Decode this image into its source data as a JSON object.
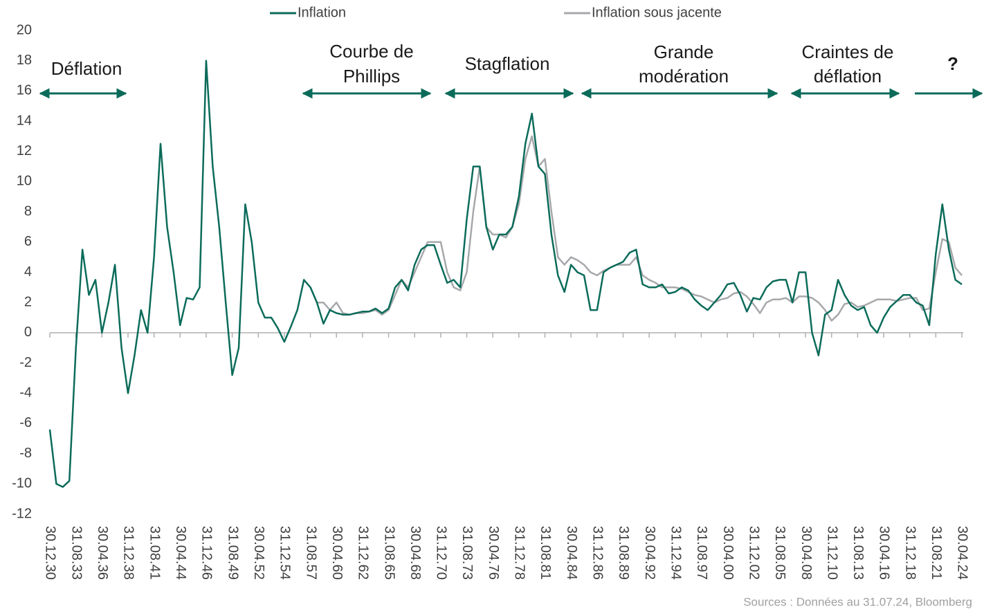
{
  "chart_data": {
    "type": "line",
    "categories": [
      "30.12.30",
      null,
      null,
      null,
      "31.08.33",
      null,
      null,
      null,
      "30.04.36",
      null,
      null,
      null,
      "31.12.38",
      null,
      null,
      null,
      "31.08.41",
      null,
      null,
      null,
      "30.04.44",
      null,
      null,
      null,
      "31.12.46",
      null,
      null,
      null,
      "31.08.49",
      null,
      null,
      null,
      "30.04.52",
      null,
      null,
      null,
      "31.12.54",
      null,
      null,
      null,
      "31.08.57",
      null,
      null,
      null,
      "30.04.60",
      null,
      null,
      null,
      "31.12.62",
      null,
      null,
      null,
      "31.08.65",
      null,
      null,
      null,
      "30.04.68",
      null,
      null,
      null,
      "31.12.70",
      null,
      null,
      null,
      "31.08.73",
      null,
      null,
      null,
      "30.04.76",
      null,
      null,
      null,
      "31.12.78",
      null,
      null,
      null,
      "31.08.81",
      null,
      null,
      null,
      "30.04.84",
      null,
      null,
      null,
      "31.12.86",
      null,
      null,
      null,
      "31.08.89",
      null,
      null,
      null,
      "30.04.92",
      null,
      null,
      null,
      "31.12.94",
      null,
      null,
      null,
      "31.08.97",
      null,
      null,
      null,
      "30.04.00",
      null,
      null,
      null,
      "31.12.02",
      null,
      null,
      null,
      "31.08.05",
      null,
      null,
      null,
      "30.04.08",
      null,
      null,
      null,
      "31.12.10",
      null,
      null,
      null,
      "31.08.13",
      null,
      null,
      null,
      "30.04.16",
      null,
      null,
      null,
      "31.12.18",
      null,
      null,
      null,
      "31.08.21",
      null,
      null,
      null,
      "30.04.24"
    ],
    "series": [
      {
        "name": "Inflation",
        "color": "#0b6b5a",
        "values": [
          -6.4,
          -10,
          -10.2,
          -9.8,
          -1,
          5.5,
          2.5,
          3.5,
          0,
          2,
          4.5,
          -1,
          -4,
          -1.5,
          1.5,
          0,
          5,
          12.5,
          7,
          4,
          0.5,
          2.3,
          2.2,
          3,
          18,
          11,
          7,
          2,
          -2.8,
          -1,
          8.5,
          6,
          2,
          1,
          1,
          0.3,
          -0.6,
          0.4,
          1.5,
          3.5,
          3,
          2,
          0.6,
          1.5,
          1.3,
          1.2,
          1.2,
          1.3,
          1.4,
          1.4,
          1.6,
          1.3,
          1.6,
          3,
          3.5,
          2.8,
          4.5,
          5.5,
          5.8,
          5.8,
          4.5,
          3.3,
          3.5,
          3,
          7.5,
          11,
          11,
          7,
          5.5,
          6.5,
          6.5,
          7,
          9,
          12.5,
          14.5,
          11,
          10.5,
          6.5,
          3.8,
          2.7,
          4.5,
          4,
          3.8,
          1.5,
          1.5,
          4,
          4.3,
          4.5,
          4.7,
          5.3,
          5.5,
          3.2,
          3,
          3,
          3.2,
          2.6,
          2.7,
          3,
          2.8,
          2.2,
          1.8,
          1.5,
          2,
          2.5,
          3.2,
          3.3,
          2.5,
          1.4,
          2.3,
          2.2,
          3,
          3.4,
          3.5,
          3.5,
          2,
          4,
          4,
          0,
          -1.5,
          1.2,
          1.5,
          3.5,
          2.5,
          1.8,
          1.5,
          1.7,
          0.5,
          0,
          1,
          1.7,
          2.1,
          2.5,
          2.5,
          2,
          1.8,
          0.5,
          5.2,
          8.5,
          5.5,
          3.5,
          3.2
        ]
      },
      {
        "name": "Inflation sous jacente",
        "color": "#a6a8ab",
        "values": [
          null,
          null,
          null,
          null,
          null,
          null,
          null,
          null,
          null,
          null,
          null,
          null,
          null,
          null,
          null,
          null,
          null,
          null,
          null,
          null,
          null,
          null,
          null,
          null,
          null,
          null,
          null,
          null,
          null,
          null,
          null,
          null,
          null,
          null,
          null,
          null,
          null,
          null,
          null,
          null,
          3,
          2,
          2,
          1.5,
          2,
          1.3,
          1.2,
          1.3,
          1.3,
          1.4,
          1.5,
          1.2,
          1.5,
          2.5,
          3.5,
          3,
          4,
          5,
          6,
          6,
          6,
          4,
          3,
          2.8,
          4,
          8,
          11,
          7,
          6.5,
          6.5,
          6.3,
          7,
          8.5,
          11.5,
          13,
          11,
          11.5,
          8,
          5,
          4.5,
          5,
          4.8,
          4.5,
          4,
          3.8,
          4.1,
          4.3,
          4.5,
          4.5,
          4.5,
          5,
          3.8,
          3.5,
          3.3,
          3,
          3,
          3,
          2.9,
          2.7,
          2.5,
          2.4,
          2.2,
          2,
          2.2,
          2.3,
          2.6,
          2.7,
          2.4,
          1.9,
          1.3,
          2,
          2.2,
          2.2,
          2.3,
          2,
          2.4,
          2.4,
          2.3,
          2,
          1.5,
          0.8,
          1.2,
          1.9,
          2,
          1.7,
          1.8,
          2,
          2.2,
          2.2,
          2.2,
          2.1,
          2.2,
          2.3,
          2.3,
          1.5,
          1.6,
          4,
          6.2,
          6,
          4.3,
          3.8
        ]
      }
    ],
    "ylim": [
      -12,
      20
    ],
    "yticks": [
      -12,
      -10,
      -8,
      -6,
      -4,
      -2,
      0,
      2,
      4,
      6,
      8,
      10,
      12,
      14,
      16,
      18,
      20
    ],
    "annotations": [
      [
        "Déflation"
      ],
      [
        "Courbe de",
        "Phillips"
      ],
      [
        "Stagflation"
      ],
      [
        "Grande",
        "modération"
      ],
      [
        "Craintes de",
        "déflation"
      ],
      [
        "?"
      ]
    ],
    "source": "Sources : Données au 31.07.24, Bloomberg"
  }
}
